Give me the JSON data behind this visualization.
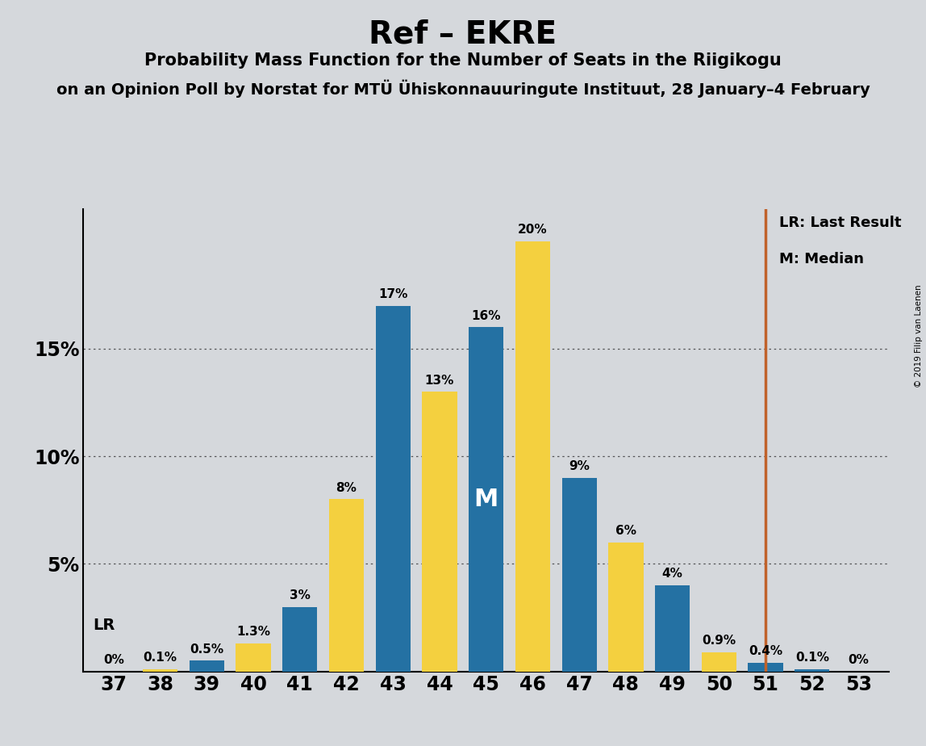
{
  "title": "Ref – EKRE",
  "subtitle1": "Probability Mass Function for the Number of Seats in the Riigikogu",
  "subtitle2": "on an Opinion Poll by Norstat for MTÜ Ühiskonnauuringute Instituut, 28 January–4 February",
  "copyright": "© 2019 Filip van Laenen",
  "seats": [
    37,
    38,
    39,
    40,
    41,
    42,
    43,
    44,
    45,
    46,
    47,
    48,
    49,
    50,
    51,
    52,
    53
  ],
  "blue_values": [
    0.0,
    0.0,
    0.5,
    0.0,
    3.0,
    0.0,
    17.0,
    0.0,
    16.0,
    0.0,
    9.0,
    0.0,
    4.0,
    0.0,
    0.4,
    0.1,
    0.0
  ],
  "yellow_values": [
    0.0,
    0.1,
    0.0,
    1.3,
    0.0,
    8.0,
    0.0,
    13.0,
    0.0,
    20.0,
    0.0,
    6.0,
    0.0,
    0.9,
    0.0,
    0.0,
    0.0
  ],
  "blue_labels": [
    "",
    "",
    "0.5%",
    "",
    "3%",
    "",
    "17%",
    "",
    "16%",
    "",
    "9%",
    "",
    "4%",
    "",
    "0.4%",
    "0.1%",
    "0%"
  ],
  "yellow_labels": [
    "0%",
    "0.1%",
    "",
    "1.3%",
    "",
    "8%",
    "",
    "13%",
    "",
    "20%",
    "",
    "6%",
    "",
    "0.9%",
    "",
    "",
    ""
  ],
  "median_seat": 45,
  "lr_seat": 51,
  "lr_label": "LR",
  "lr_line_label": "LR: Last Result",
  "median_label": "M: Median",
  "blue_color": "#2471A3",
  "yellow_color": "#F4D03F",
  "lr_line_color": "#C0622B",
  "background_color": "#D5D8DC",
  "ylim": [
    0,
    21.5
  ],
  "yticks": [
    5,
    10,
    15
  ],
  "ytick_labels": [
    "5%",
    "10%",
    "15%"
  ],
  "label_fontsize": 11,
  "title_fontsize": 28,
  "subtitle1_fontsize": 15,
  "subtitle2_fontsize": 14,
  "tick_fontsize": 17
}
